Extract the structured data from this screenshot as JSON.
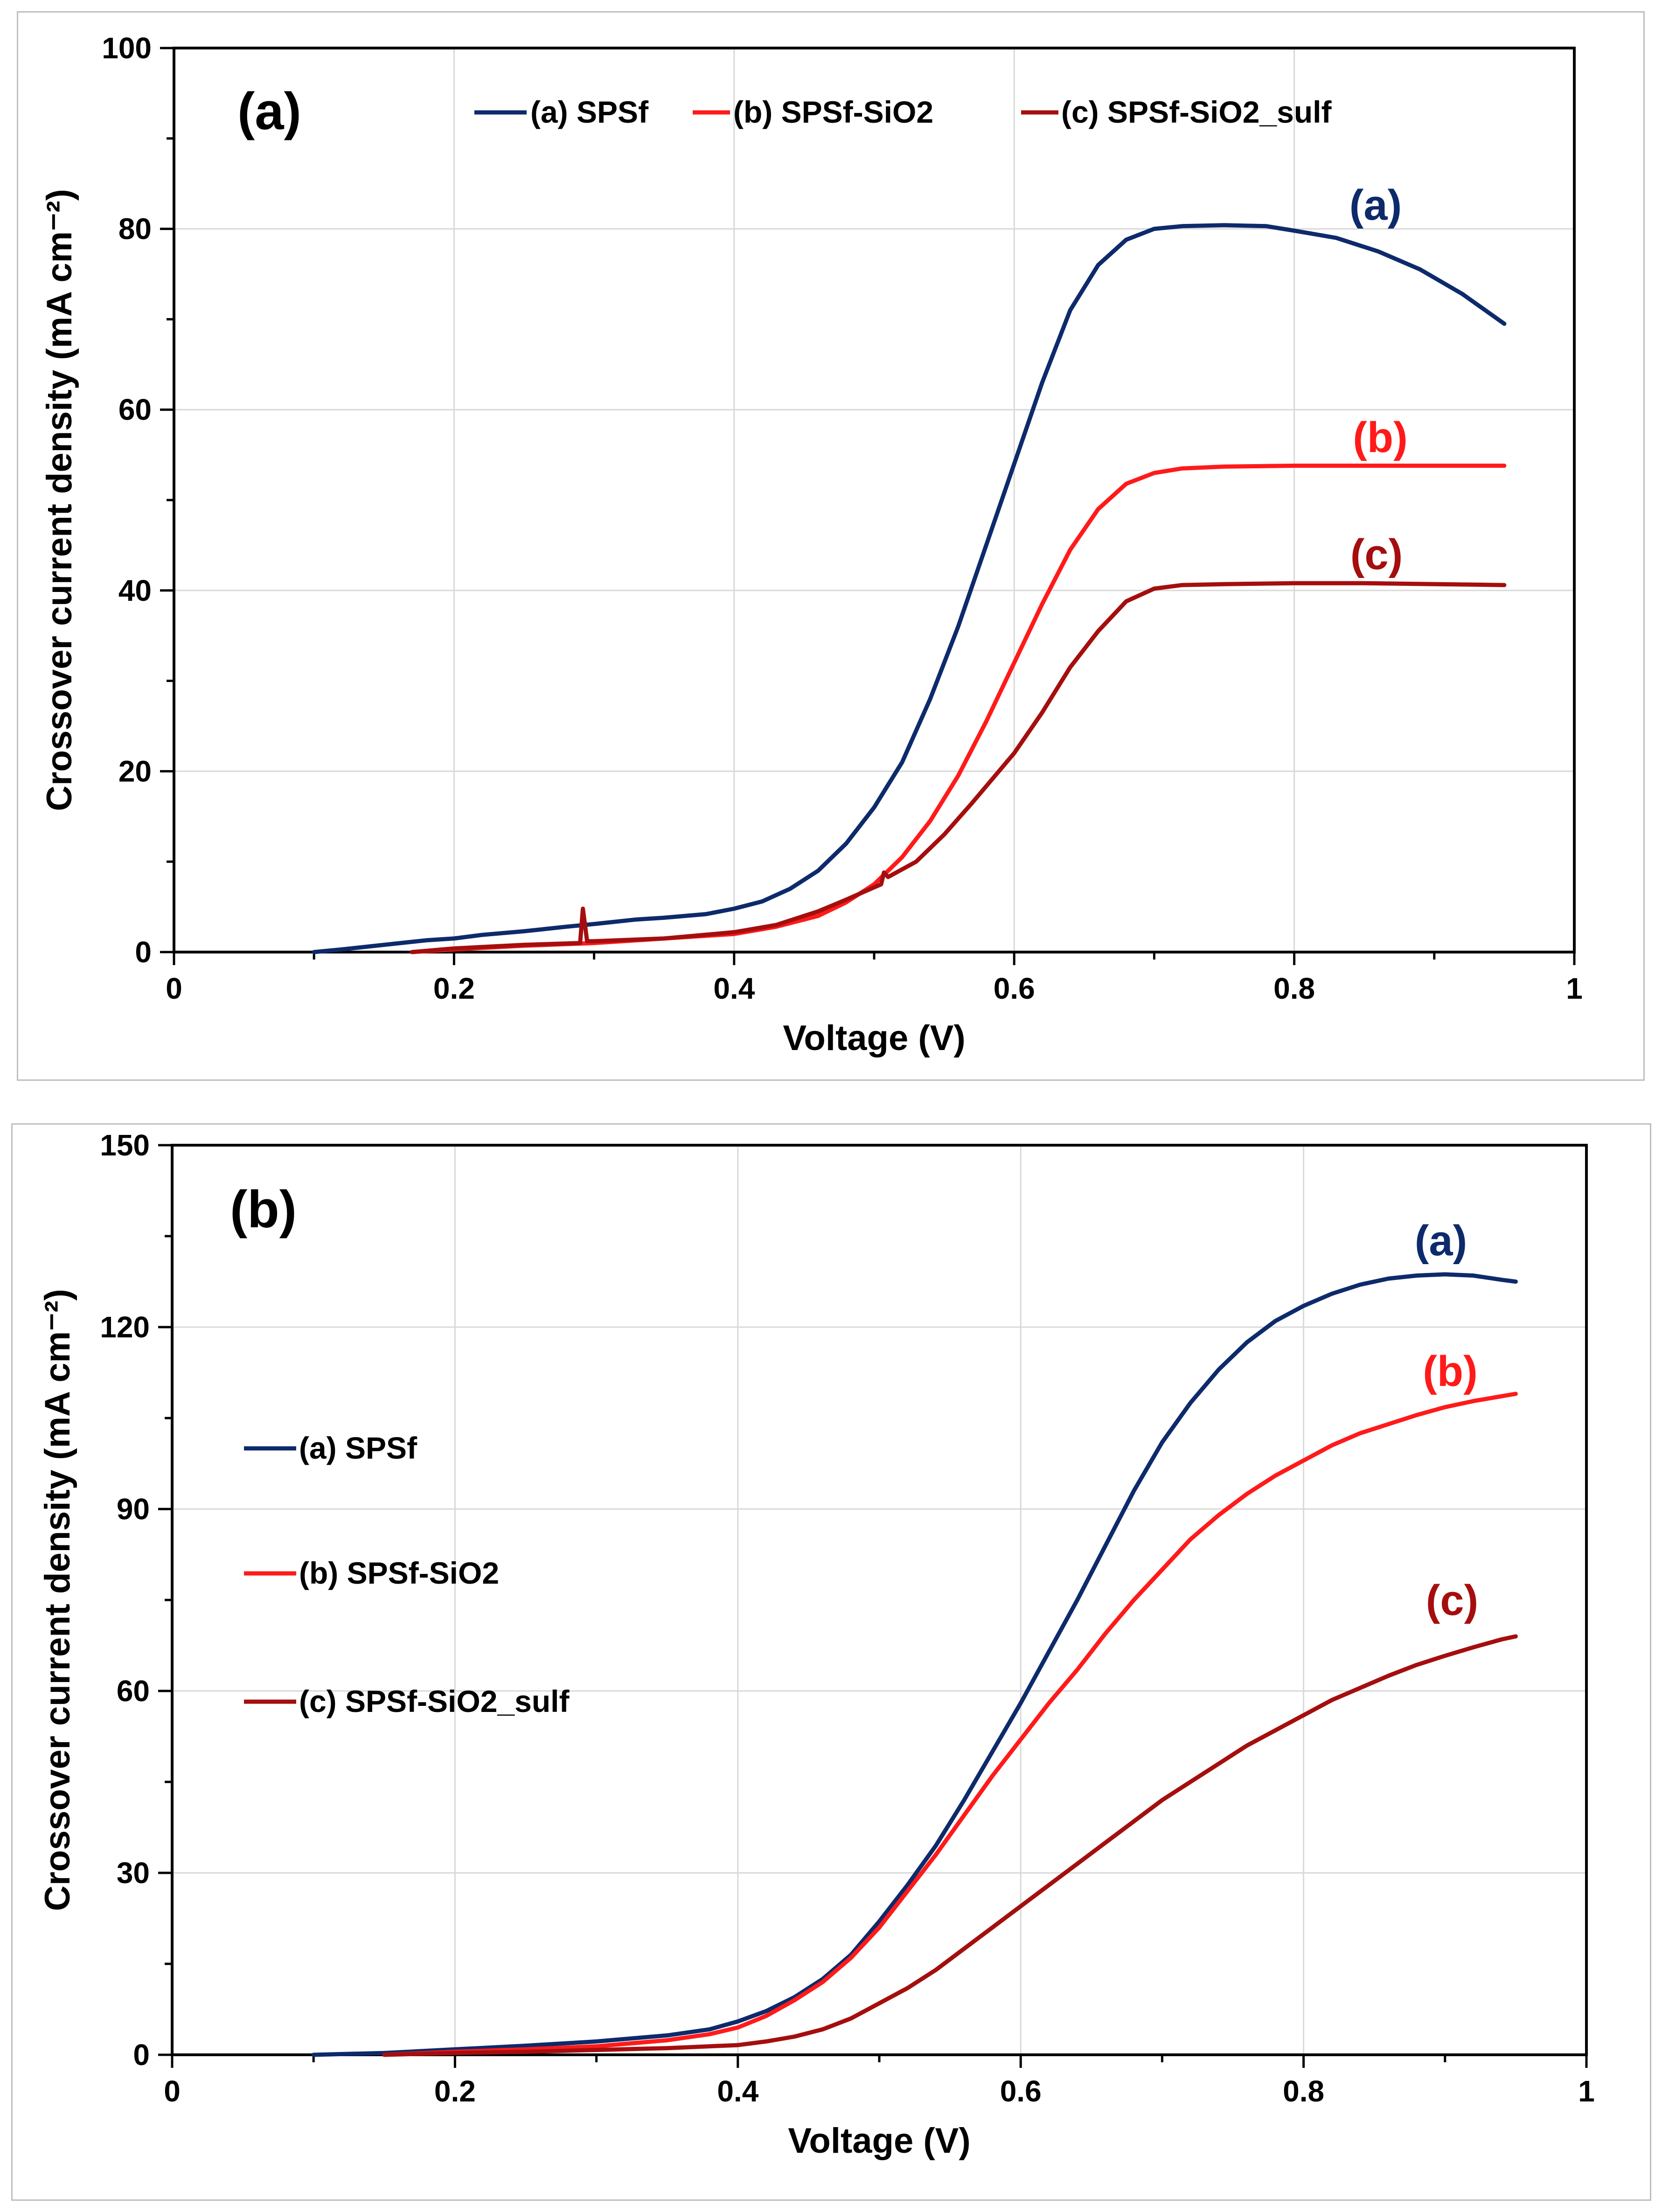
{
  "colors": {
    "series_a": "#0d2a6b",
    "series_b": "#ff1a1a",
    "series_c": "#a50e0e",
    "grid": "#d9d9d9",
    "panel_border": "#bfbfbf"
  },
  "chart_data": [
    {
      "type": "line",
      "panel_label": "(a)",
      "xlabel": "Voltage (V)",
      "ylabel": "Crossover current density (mA cm⁻²)",
      "xlim": [
        0,
        1
      ],
      "ylim": [
        0,
        100
      ],
      "x_ticks": [
        0,
        0.2,
        0.4,
        0.6,
        0.8,
        1
      ],
      "x_tick_labels": [
        "0",
        "0.2",
        "0.4",
        "0.6",
        "0.8",
        "1"
      ],
      "y_ticks": [
        0,
        20,
        40,
        60,
        80,
        100
      ],
      "y_tick_labels": [
        "0",
        "20",
        "40",
        "60",
        "80",
        "100"
      ],
      "grid": true,
      "legend_position": "top",
      "series": [
        {
          "name": "(a) SPSf",
          "curve_label": "(a)",
          "color_key": "series_a",
          "points": [
            [
              0.1,
              0.0
            ],
            [
              0.12,
              0.3
            ],
            [
              0.15,
              0.8
            ],
            [
              0.18,
              1.3
            ],
            [
              0.2,
              1.5
            ],
            [
              0.22,
              1.9
            ],
            [
              0.25,
              2.3
            ],
            [
              0.28,
              2.8
            ],
            [
              0.3,
              3.1
            ],
            [
              0.33,
              3.6
            ],
            [
              0.35,
              3.8
            ],
            [
              0.38,
              4.2
            ],
            [
              0.4,
              4.8
            ],
            [
              0.42,
              5.6
            ],
            [
              0.44,
              7.0
            ],
            [
              0.46,
              9.0
            ],
            [
              0.48,
              12.0
            ],
            [
              0.5,
              16.0
            ],
            [
              0.52,
              21.0
            ],
            [
              0.54,
              28.0
            ],
            [
              0.56,
              36.0
            ],
            [
              0.58,
              45.0
            ],
            [
              0.6,
              54.0
            ],
            [
              0.62,
              63.0
            ],
            [
              0.64,
              71.0
            ],
            [
              0.66,
              76.0
            ],
            [
              0.68,
              78.8
            ],
            [
              0.7,
              80.0
            ],
            [
              0.72,
              80.3
            ],
            [
              0.75,
              80.4
            ],
            [
              0.78,
              80.3
            ],
            [
              0.8,
              79.8
            ],
            [
              0.83,
              79.0
            ],
            [
              0.86,
              77.5
            ],
            [
              0.89,
              75.5
            ],
            [
              0.92,
              72.8
            ],
            [
              0.95,
              69.5
            ]
          ]
        },
        {
          "name": "(b) SPSf-SiO2",
          "curve_label": "(b)",
          "color_key": "series_b",
          "points": [
            [
              0.17,
              0.0
            ],
            [
              0.2,
              0.3
            ],
            [
              0.25,
              0.7
            ],
            [
              0.3,
              1.0
            ],
            [
              0.35,
              1.5
            ],
            [
              0.4,
              2.0
            ],
            [
              0.43,
              2.8
            ],
            [
              0.46,
              4.0
            ],
            [
              0.48,
              5.5
            ],
            [
              0.5,
              7.5
            ],
            [
              0.52,
              10.5
            ],
            [
              0.54,
              14.5
            ],
            [
              0.56,
              19.5
            ],
            [
              0.58,
              25.5
            ],
            [
              0.6,
              32.0
            ],
            [
              0.62,
              38.5
            ],
            [
              0.64,
              44.5
            ],
            [
              0.66,
              49.0
            ],
            [
              0.68,
              51.8
            ],
            [
              0.7,
              53.0
            ],
            [
              0.72,
              53.5
            ],
            [
              0.75,
              53.7
            ],
            [
              0.8,
              53.8
            ],
            [
              0.85,
              53.8
            ],
            [
              0.9,
              53.8
            ],
            [
              0.95,
              53.8
            ]
          ]
        },
        {
          "name": "(c)  SPSf-SiO2_sulf",
          "curve_label": "(c)",
          "color_key": "series_c",
          "points": [
            [
              0.17,
              0.0
            ],
            [
              0.2,
              0.4
            ],
            [
              0.25,
              0.8
            ],
            [
              0.29,
              1.0
            ],
            [
              0.292,
              4.8
            ],
            [
              0.295,
              1.2
            ],
            [
              0.3,
              1.2
            ],
            [
              0.35,
              1.5
            ],
            [
              0.4,
              2.2
            ],
            [
              0.43,
              3.0
            ],
            [
              0.46,
              4.5
            ],
            [
              0.48,
              5.8
            ],
            [
              0.505,
              7.5
            ],
            [
              0.507,
              8.8
            ],
            [
              0.51,
              8.3
            ],
            [
              0.53,
              10.0
            ],
            [
              0.55,
              13.0
            ],
            [
              0.57,
              16.5
            ],
            [
              0.6,
              22.0
            ],
            [
              0.62,
              26.5
            ],
            [
              0.64,
              31.5
            ],
            [
              0.66,
              35.5
            ],
            [
              0.68,
              38.8
            ],
            [
              0.7,
              40.2
            ],
            [
              0.72,
              40.6
            ],
            [
              0.75,
              40.7
            ],
            [
              0.8,
              40.8
            ],
            [
              0.85,
              40.8
            ],
            [
              0.9,
              40.7
            ],
            [
              0.95,
              40.6
            ]
          ]
        }
      ]
    },
    {
      "type": "line",
      "panel_label": "(b)",
      "xlabel": "Voltage (V)",
      "ylabel": "Crossover current density (mA cm⁻²)",
      "xlim": [
        0,
        1
      ],
      "ylim": [
        0,
        150
      ],
      "x_ticks": [
        0,
        0.2,
        0.4,
        0.6,
        0.8,
        1
      ],
      "x_tick_labels": [
        "0",
        "0.2",
        "0.4",
        "0.6",
        "0.8",
        "1"
      ],
      "y_ticks": [
        0,
        30,
        60,
        90,
        120,
        150
      ],
      "y_tick_labels": [
        "0",
        "30",
        "60",
        "90",
        "120",
        "150"
      ],
      "grid": true,
      "legend_position": "left",
      "series": [
        {
          "name": "(a) SPSf",
          "curve_label": "(a)",
          "color_key": "series_a",
          "points": [
            [
              0.1,
              0.0
            ],
            [
              0.15,
              0.3
            ],
            [
              0.2,
              0.9
            ],
            [
              0.25,
              1.5
            ],
            [
              0.3,
              2.2
            ],
            [
              0.35,
              3.2
            ],
            [
              0.38,
              4.2
            ],
            [
              0.4,
              5.5
            ],
            [
              0.42,
              7.2
            ],
            [
              0.44,
              9.5
            ],
            [
              0.46,
              12.5
            ],
            [
              0.48,
              16.5
            ],
            [
              0.5,
              22.0
            ],
            [
              0.52,
              28.0
            ],
            [
              0.54,
              34.5
            ],
            [
              0.56,
              42.0
            ],
            [
              0.58,
              50.0
            ],
            [
              0.6,
              58.0
            ],
            [
              0.62,
              66.5
            ],
            [
              0.64,
              75.0
            ],
            [
              0.66,
              84.0
            ],
            [
              0.68,
              93.0
            ],
            [
              0.7,
              101.0
            ],
            [
              0.72,
              107.5
            ],
            [
              0.74,
              113.0
            ],
            [
              0.76,
              117.5
            ],
            [
              0.78,
              121.0
            ],
            [
              0.8,
              123.5
            ],
            [
              0.82,
              125.5
            ],
            [
              0.84,
              127.0
            ],
            [
              0.86,
              128.0
            ],
            [
              0.88,
              128.5
            ],
            [
              0.9,
              128.7
            ],
            [
              0.92,
              128.5
            ],
            [
              0.94,
              127.8
            ],
            [
              0.95,
              127.5
            ]
          ]
        },
        {
          "name": "(b) SPSf-SiO2",
          "curve_label": "(b)",
          "color_key": "series_b",
          "points": [
            [
              0.15,
              0.0
            ],
            [
              0.2,
              0.5
            ],
            [
              0.25,
              0.9
            ],
            [
              0.3,
              1.4
            ],
            [
              0.35,
              2.4
            ],
            [
              0.38,
              3.4
            ],
            [
              0.4,
              4.5
            ],
            [
              0.42,
              6.4
            ],
            [
              0.44,
              9.0
            ],
            [
              0.46,
              12.0
            ],
            [
              0.48,
              16.0
            ],
            [
              0.5,
              21.0
            ],
            [
              0.52,
              27.0
            ],
            [
              0.54,
              33.0
            ],
            [
              0.56,
              39.5
            ],
            [
              0.58,
              46.0
            ],
            [
              0.6,
              52.0
            ],
            [
              0.62,
              58.0
            ],
            [
              0.64,
              63.5
            ],
            [
              0.66,
              69.5
            ],
            [
              0.68,
              75.0
            ],
            [
              0.7,
              80.0
            ],
            [
              0.72,
              85.0
            ],
            [
              0.74,
              89.0
            ],
            [
              0.76,
              92.5
            ],
            [
              0.78,
              95.5
            ],
            [
              0.8,
              98.0
            ],
            [
              0.82,
              100.5
            ],
            [
              0.84,
              102.5
            ],
            [
              0.86,
              104.0
            ],
            [
              0.88,
              105.5
            ],
            [
              0.9,
              106.8
            ],
            [
              0.92,
              107.8
            ],
            [
              0.94,
              108.6
            ],
            [
              0.95,
              109.0
            ]
          ]
        },
        {
          "name": "(c) SPSf-SiO2_sulf",
          "curve_label": "(c)",
          "color_key": "series_c",
          "points": [
            [
              0.15,
              0.0
            ],
            [
              0.2,
              0.3
            ],
            [
              0.25,
              0.5
            ],
            [
              0.3,
              0.8
            ],
            [
              0.35,
              1.1
            ],
            [
              0.4,
              1.6
            ],
            [
              0.42,
              2.2
            ],
            [
              0.44,
              3.0
            ],
            [
              0.46,
              4.2
            ],
            [
              0.48,
              6.0
            ],
            [
              0.5,
              8.5
            ],
            [
              0.52,
              11.0
            ],
            [
              0.54,
              14.0
            ],
            [
              0.56,
              17.5
            ],
            [
              0.58,
              21.0
            ],
            [
              0.6,
              24.5
            ],
            [
              0.62,
              28.0
            ],
            [
              0.64,
              31.5
            ],
            [
              0.66,
              35.0
            ],
            [
              0.68,
              38.5
            ],
            [
              0.7,
              42.0
            ],
            [
              0.72,
              45.0
            ],
            [
              0.74,
              48.0
            ],
            [
              0.76,
              51.0
            ],
            [
              0.78,
              53.5
            ],
            [
              0.8,
              56.0
            ],
            [
              0.82,
              58.5
            ],
            [
              0.84,
              60.5
            ],
            [
              0.86,
              62.5
            ],
            [
              0.88,
              64.3
            ],
            [
              0.9,
              65.8
            ],
            [
              0.92,
              67.2
            ],
            [
              0.94,
              68.5
            ],
            [
              0.95,
              69.0
            ]
          ]
        }
      ]
    }
  ]
}
